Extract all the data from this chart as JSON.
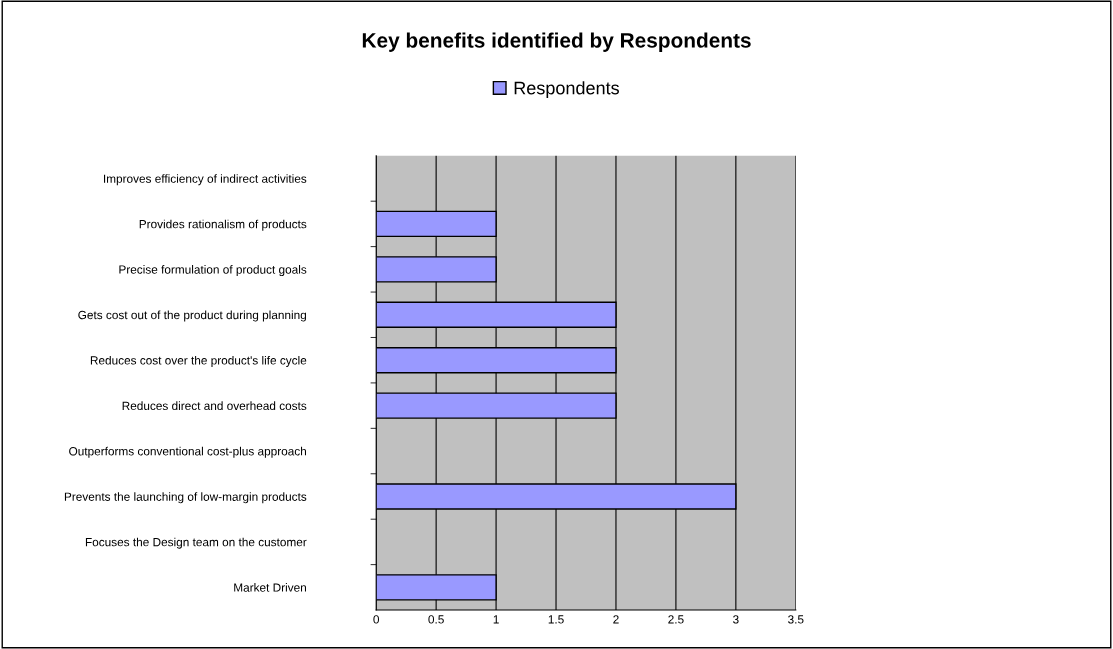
{
  "chart_data": {
    "type": "bar",
    "orientation": "horizontal",
    "title": "Key benefits identified by Respondents",
    "categories": [
      "Improves efficiency of indirect activities",
      "Provides rationalism of products",
      "Precise formulation of product goals",
      "Gets cost out of the product during planning",
      "Reduces cost over the product's life cycle",
      "Reduces direct and overhead costs",
      "Outperforms conventional cost-plus approach",
      "Prevents the launching of low-margin products",
      "Focuses the Design team on the customer",
      "Market Driven"
    ],
    "series": [
      {
        "name": "Respondents",
        "color": "#9999ff",
        "values": [
          0,
          1,
          1,
          2,
          2,
          2,
          0,
          3,
          0,
          1
        ]
      }
    ],
    "xlim": [
      0,
      3.5
    ],
    "xticks": [
      0,
      0.5,
      1,
      1.5,
      2,
      2.5,
      3,
      3.5
    ],
    "grid": "x",
    "legend": "top"
  }
}
